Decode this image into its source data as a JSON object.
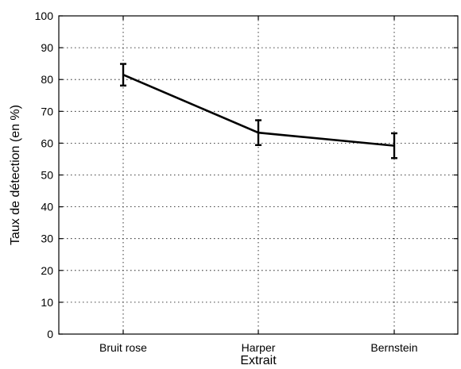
{
  "chart_data": {
    "type": "line",
    "title": "",
    "xlabel": "Extrait",
    "ylabel": "Taux de détection (en %)",
    "categories": [
      "Bruit rose",
      "Harper",
      "Bernstein"
    ],
    "series": [
      {
        "values": [
          81.5,
          63.3,
          59.2
        ],
        "errors": [
          3.4,
          3.9,
          3.9
        ]
      }
    ],
    "ylim": [
      0,
      100
    ],
    "yticks": [
      0,
      10,
      20,
      30,
      40,
      50,
      60,
      70,
      80,
      90,
      100
    ],
    "grid": true,
    "line_color": "#000000"
  }
}
